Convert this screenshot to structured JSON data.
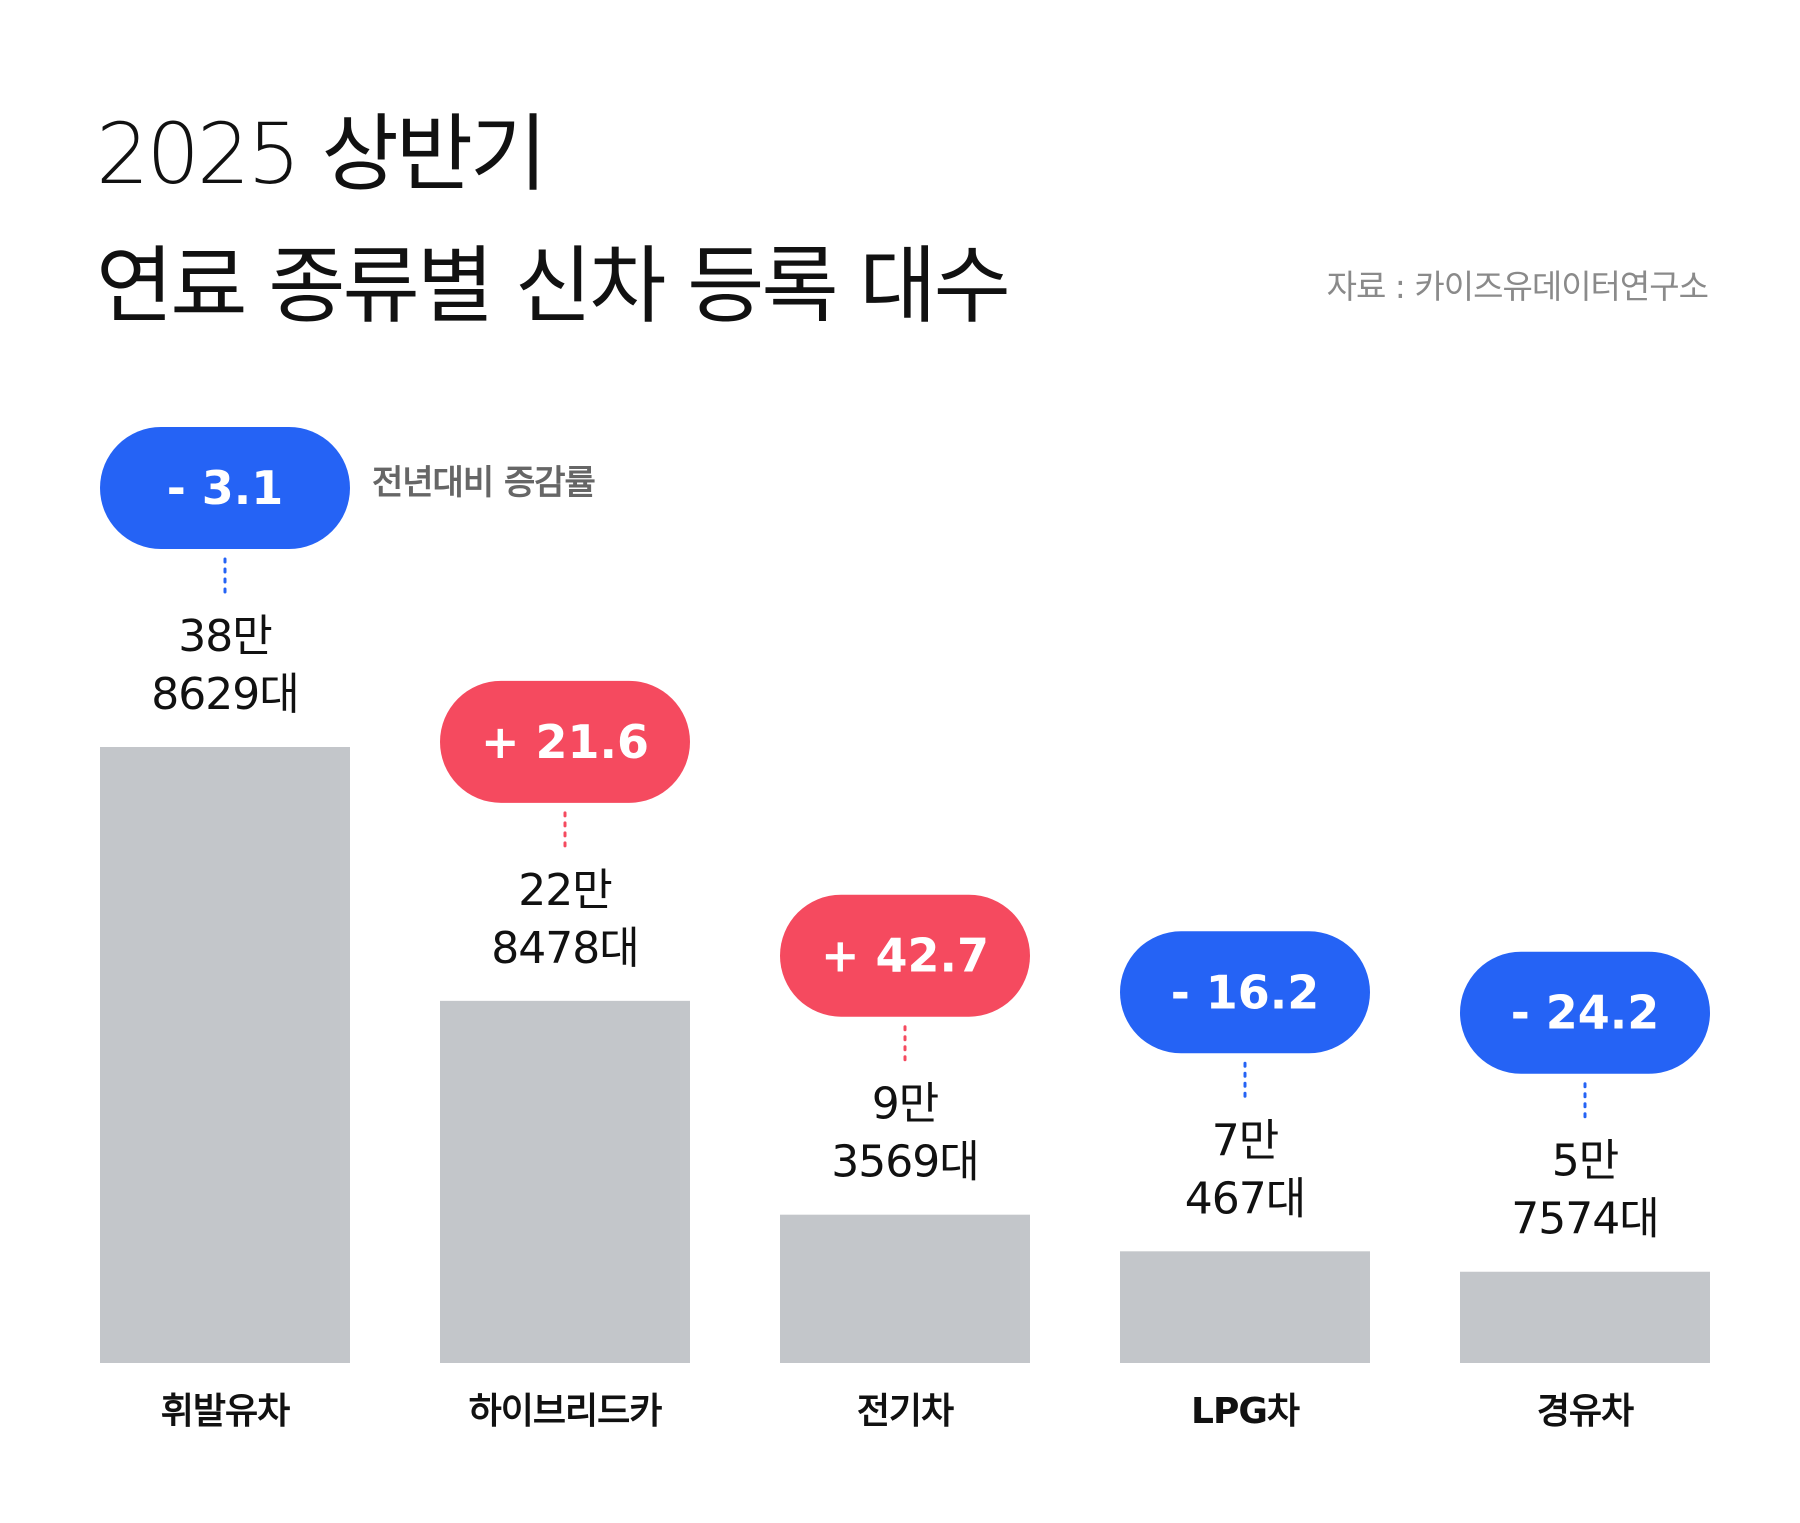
{
  "chart_data": {
    "type": "bar",
    "title": [
      "2025 상반기",
      "연료 종류별 신차 등록 대수"
    ],
    "source": "자료 : 카이즈유데이터연구소",
    "change_label": "전년대비 증감률",
    "categories": [
      "휘발유차",
      "하이브리드카",
      "전기차",
      "LPG차",
      "경유차"
    ],
    "values": [
      388629,
      228478,
      93569,
      70467,
      57574
    ],
    "value_labels": [
      [
        "38만",
        "8629대"
      ],
      [
        "22만",
        "8478대"
      ],
      [
        "9만",
        "3569대"
      ],
      [
        "7만",
        "467대"
      ],
      [
        "5만",
        "7574대"
      ]
    ],
    "changes": [
      -3.1,
      21.6,
      42.7,
      -16.2,
      -24.2
    ],
    "change_labels": [
      "- 3.1",
      "+ 21.6",
      "+ 42.7",
      "- 16.2",
      "- 24.2"
    ],
    "colors": {
      "bar": "#c3c6ca",
      "decrease": "#2563f5",
      "increase": "#f54a5f"
    }
  }
}
